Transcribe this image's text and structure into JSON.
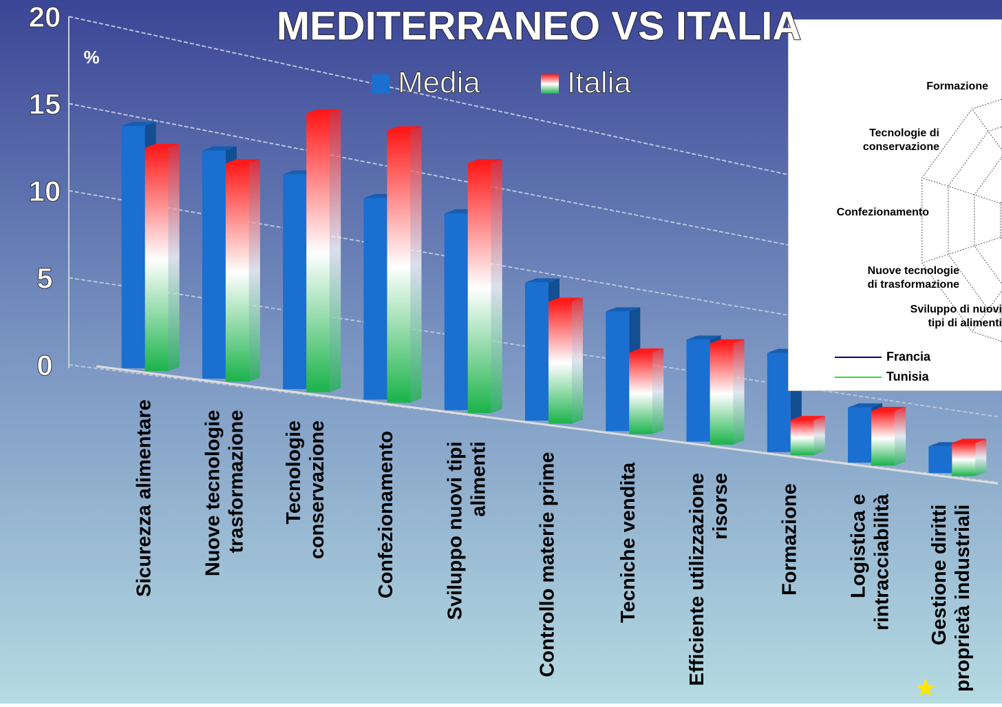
{
  "chart_data": [
    {
      "type": "bar3d",
      "title": "MEDITERRANEO VS ITALIA",
      "y_label": "%",
      "categories": [
        [
          "Sicurezza alimentare"
        ],
        [
          "Nuove tecnologie",
          "trasformazione"
        ],
        [
          "Tecnologie",
          "conservazione"
        ],
        [
          "Confezionamento"
        ],
        [
          "Sviluppo nuovi tipi",
          "alimenti"
        ],
        [
          "Controllo materie prime"
        ],
        [
          "Tecniche vendita"
        ],
        [
          "Efficiente utilizzazione",
          "risorse"
        ],
        [
          "Formazione"
        ],
        [
          "Logistica e",
          "rintracciabilità"
        ],
        [
          "Gestione diritti",
          "proprietà industriali"
        ]
      ],
      "series": [
        {
          "name": "Media",
          "color": "#1a6fd0",
          "values": [
            14,
            13.5,
            13,
            12.5,
            12.5,
            9,
            8,
            7,
            7,
            4,
            2
          ]
        },
        {
          "name": "Italia",
          "color": [
            "#ff1a1a",
            "#ffffff",
            "#1ab34a"
          ],
          "values": [
            13,
            13,
            17,
            17,
            16,
            8,
            5.5,
            7,
            2.5,
            4,
            2.5
          ]
        }
      ],
      "ylim": [
        0,
        20
      ],
      "yticks": [
        0,
        5,
        10,
        15,
        20
      ],
      "grid": true
    },
    {
      "type": "radar",
      "categories": [
        [
          "Formazione"
        ],
        [
          "Tecnologie di",
          "conservazione"
        ],
        [
          "Confezionamento"
        ],
        [
          "Nuove tecnologie",
          "di trasformazione"
        ],
        [
          "Sviluppo di nuovi",
          "tipi di alimenti"
        ]
      ],
      "series": [
        {
          "name": "Francia",
          "color": "#000080"
        },
        {
          "name": "Tunisia",
          "color": "#33dd33"
        }
      ]
    }
  ]
}
